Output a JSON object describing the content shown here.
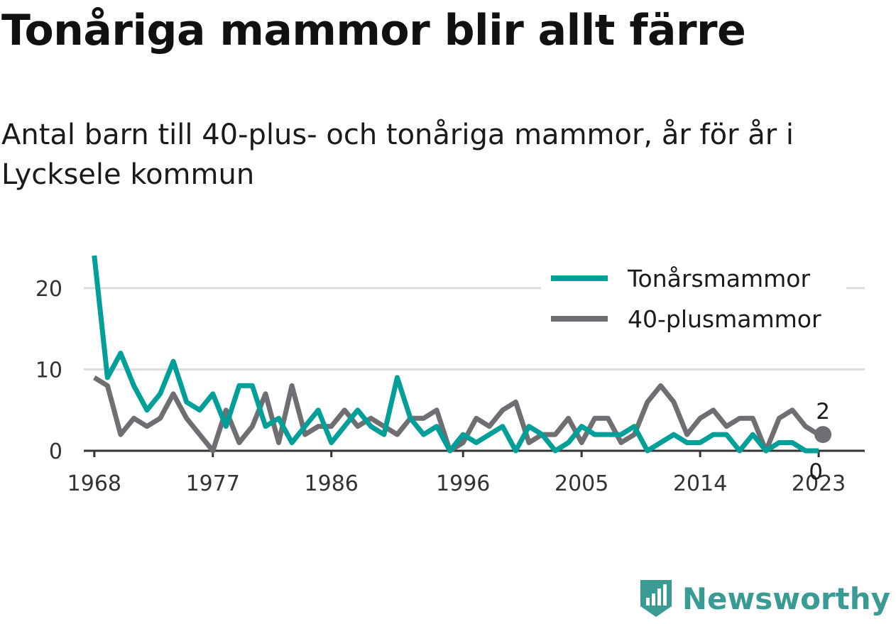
{
  "title": "Tonåriga mammor blir allt färre",
  "subtitle": "Antal barn till 40-plus- och tonåriga mammor, år för år i Lycksele kommun",
  "logo": {
    "text": "Newsworthy",
    "icon": "newsworthy-bar-icon",
    "color": "#3a9a94"
  },
  "chart_data": {
    "type": "line",
    "title": "Tonåriga mammor blir allt färre",
    "subtitle": "Antal barn till 40-plus- och tonåriga mammor, år för år i Lycksele kommun",
    "x": [
      1968,
      1969,
      1970,
      1971,
      1972,
      1973,
      1974,
      1975,
      1976,
      1977,
      1978,
      1979,
      1980,
      1981,
      1982,
      1983,
      1984,
      1985,
      1986,
      1987,
      1988,
      1989,
      1990,
      1991,
      1992,
      1993,
      1994,
      1995,
      1996,
      1997,
      1998,
      1999,
      2000,
      2001,
      2002,
      2003,
      2004,
      2005,
      2006,
      2007,
      2008,
      2009,
      2010,
      2011,
      2012,
      2013,
      2014,
      2015,
      2016,
      2017,
      2018,
      2019,
      2020,
      2021,
      2022,
      2023
    ],
    "x_ticks": [
      1968,
      1977,
      1986,
      1996,
      2005,
      2014,
      2023
    ],
    "y_ticks": [
      0,
      10,
      20
    ],
    "ylim": [
      0,
      24
    ],
    "xlim": [
      1967.2,
      2026.5
    ],
    "grid": "horizontal",
    "legend_position": "top-right",
    "series": [
      {
        "name": "Tonårsmammor",
        "color": "#00a099",
        "values": [
          24,
          9,
          12,
          8,
          5,
          7,
          11,
          6,
          5,
          7,
          3,
          8,
          8,
          3,
          4,
          1,
          3,
          5,
          1,
          3,
          5,
          3,
          2,
          9,
          4,
          2,
          3,
          0,
          2,
          1,
          2,
          3,
          0,
          3,
          2,
          0,
          1,
          3,
          2,
          2,
          2,
          3,
          0,
          1,
          2,
          1,
          1,
          2,
          2,
          0,
          2,
          0,
          1,
          1,
          0,
          0
        ],
        "end_label": "0"
      },
      {
        "name": "40-plusmammor",
        "color": "#6e6e73",
        "values": [
          9,
          8,
          2,
          4,
          3,
          4,
          7,
          4,
          2,
          0,
          5,
          1,
          3,
          7,
          1,
          8,
          2,
          3,
          3,
          5,
          3,
          4,
          3,
          2,
          4,
          4,
          5,
          0,
          1,
          4,
          3,
          5,
          6,
          1,
          2,
          2,
          4,
          1,
          4,
          4,
          1,
          2,
          6,
          8,
          6,
          2,
          4,
          5,
          3,
          4,
          4,
          0,
          4,
          5,
          3,
          2
        ],
        "end_label": "2"
      }
    ]
  }
}
